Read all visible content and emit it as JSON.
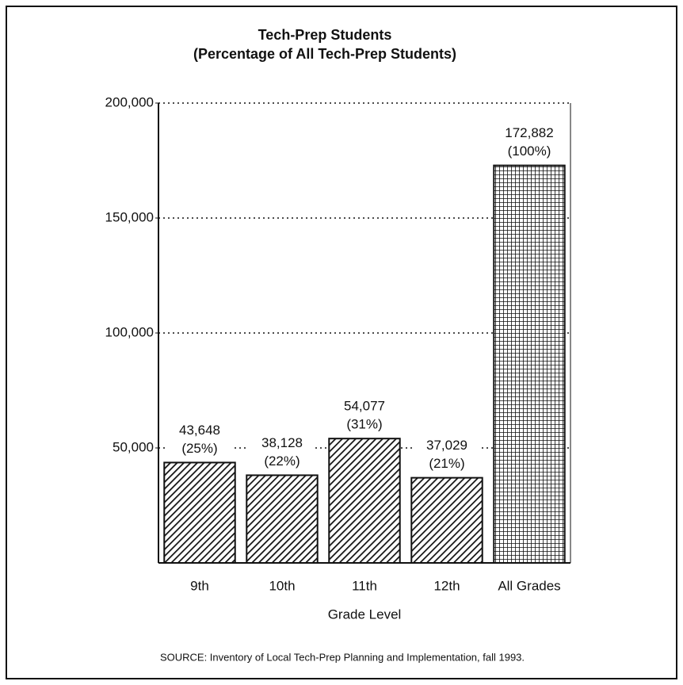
{
  "chart_data": {
    "type": "bar",
    "title": "Tech-Prep Students",
    "subtitle": "(Percentage of All Tech-Prep Students)",
    "x_label": "Grade Level",
    "source": "SOURCE:  Inventory of Local Tech-Prep Planning and Implementation, fall 1993.",
    "categories": [
      "9th",
      "10th",
      "11th",
      "12th",
      "All Grades"
    ],
    "values": [
      43648,
      38128,
      54077,
      37029,
      172882
    ],
    "value_labels": [
      "43,648",
      "38,128",
      "54,077",
      "37,029",
      "172,882"
    ],
    "share_labels": [
      "(25%)",
      "(22%)",
      "(31%)",
      "(21%)",
      "(100%)"
    ],
    "patterns": [
      "hatch",
      "hatch",
      "hatch",
      "hatch",
      "crosshatch"
    ],
    "color": "#111111",
    "ylim": [
      0,
      200000
    ],
    "yticks": [
      {
        "value": 50000,
        "label": "50,000"
      },
      {
        "value": 100000,
        "label": "100,000"
      },
      {
        "value": 150000,
        "label": "150,000"
      },
      {
        "value": 200000,
        "label": "200,000"
      }
    ],
    "grid": true
  }
}
